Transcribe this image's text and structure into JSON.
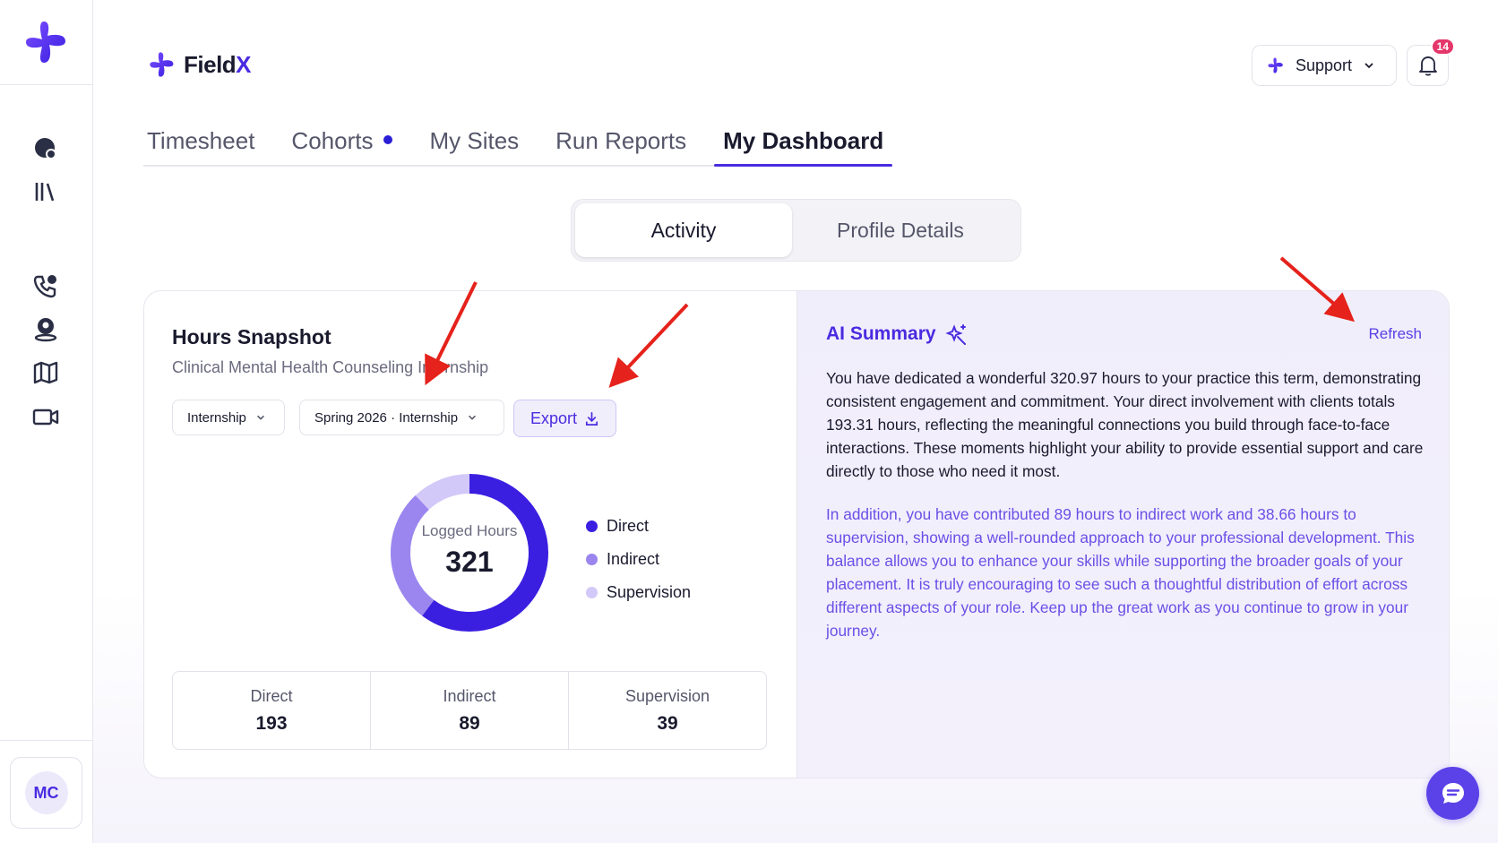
{
  "brand": {
    "name_main": "Field",
    "name_accent": "X"
  },
  "header": {
    "support_label": "Support",
    "notification_count": "14"
  },
  "sidebar": {
    "avatar_initials": "MC",
    "icons": [
      "globe-icon",
      "library-icon",
      "phone-icon",
      "user-location-icon",
      "map-icon",
      "video-icon"
    ]
  },
  "tabs": [
    {
      "label": "Timesheet",
      "active": false
    },
    {
      "label": "Cohorts",
      "active": false,
      "dot": true
    },
    {
      "label": "My Sites",
      "active": false
    },
    {
      "label": "Run Reports",
      "active": false
    },
    {
      "label": "My Dashboard",
      "active": true
    }
  ],
  "segment": {
    "activity": "Activity",
    "profile": "Profile Details",
    "selected": "Activity"
  },
  "snapshot": {
    "title": "Hours Snapshot",
    "subtitle": "Clinical Mental Health Counseling Internship",
    "filter_type": "Internship",
    "filter_term": "Spring 2026 · Internship",
    "export_label": "Export",
    "donut_label": "Logged Hours",
    "donut_value": "321",
    "legend": [
      {
        "name": "Direct",
        "color": "#3a1fe0"
      },
      {
        "name": "Indirect",
        "color": "#9b86ef"
      },
      {
        "name": "Supervision",
        "color": "#d3c9f8"
      }
    ],
    "stats": [
      {
        "label": "Direct",
        "value": "193"
      },
      {
        "label": "Indirect",
        "value": "89"
      },
      {
        "label": "Supervision",
        "value": "39"
      }
    ]
  },
  "chart_data": {
    "type": "pie",
    "categories": [
      "Direct",
      "Indirect",
      "Supervision"
    ],
    "values": [
      193.31,
      89,
      38.66
    ],
    "colors": [
      "#3a1fe0",
      "#9b86ef",
      "#d3c9f8"
    ]
  },
  "ai_summary": {
    "title": "AI Summary",
    "refresh_label": "Refresh",
    "paragraph1": "You have dedicated a wonderful 320.97 hours to your practice this term, demonstrating consistent engagement and commitment. Your direct involvement with clients totals 193.31 hours, reflecting the meaningful connections you build through face-to-face interactions. These moments highlight your ability to provide essential support and care directly to those who need it most.",
    "paragraph2": "In addition, you have contributed 89 hours to indirect work and 38.66 hours to supervision, showing a well-rounded approach to your professional development. This balance allows you to enhance your skills while supporting the broader goals of your placement. It is truly encouraging to see such a thoughtful distribution of effort across different aspects of your role. Keep up the great work as you continue to grow in your journey."
  },
  "colors": {
    "accent": "#4a2be0",
    "annotation": "#e5221b"
  }
}
